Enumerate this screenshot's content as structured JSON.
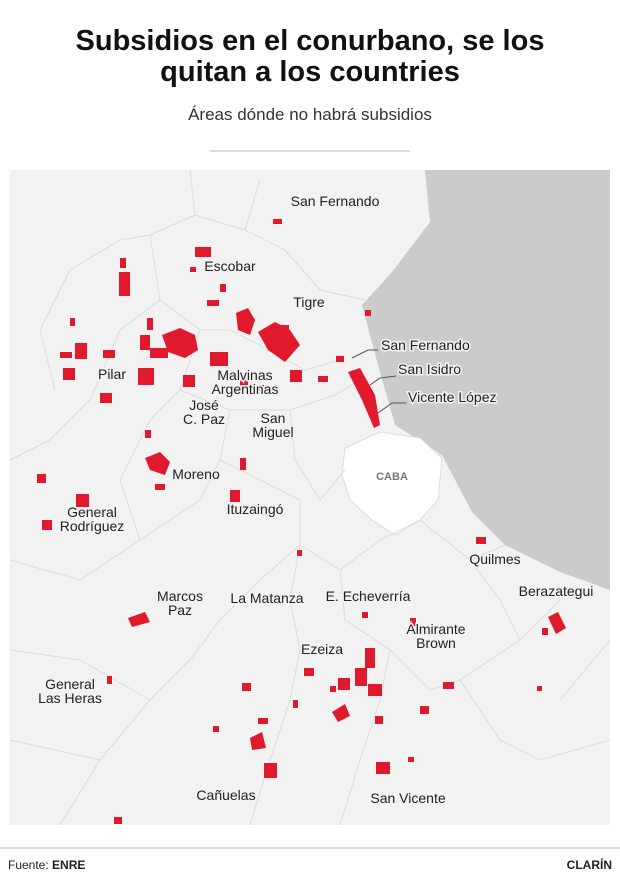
{
  "header": {
    "title": [
      "Subsidios en el conurbano, se los",
      "quitan a los countries"
    ],
    "subtitle": "Áreas dónde no habrá subsidios"
  },
  "map": {
    "labels": [
      {
        "lines": [
          "San Fernando"
        ]
      },
      {
        "lines": [
          "Escobar"
        ]
      },
      {
        "lines": [
          "Tigre"
        ]
      },
      {
        "lines": [
          "San Fernando"
        ]
      },
      {
        "lines": [
          "San Isidro"
        ]
      },
      {
        "lines": [
          "Vicente López"
        ]
      },
      {
        "lines": [
          "Pilar"
        ]
      },
      {
        "lines": [
          "Malvinas",
          "Argentinas"
        ]
      },
      {
        "lines": [
          "José",
          "C. Paz"
        ]
      },
      {
        "lines": [
          "San",
          "Miguel"
        ]
      },
      {
        "lines": [
          "CABA"
        ]
      },
      {
        "lines": [
          "Moreno"
        ]
      },
      {
        "lines": [
          "General",
          "Rodríguez"
        ]
      },
      {
        "lines": [
          "Ituzaingó"
        ]
      },
      {
        "lines": [
          "Quilmes"
        ]
      },
      {
        "lines": [
          "Berazategui"
        ]
      },
      {
        "lines": [
          "Marcos",
          "Paz"
        ]
      },
      {
        "lines": [
          "La Matanza"
        ]
      },
      {
        "lines": [
          "E. Echeverría"
        ]
      },
      {
        "lines": [
          "Almirante",
          "Brown"
        ]
      },
      {
        "lines": [
          "Ezeiza"
        ]
      },
      {
        "lines": [
          "General",
          "Las Heras"
        ]
      },
      {
        "lines": [
          "Cañuelas"
        ]
      },
      {
        "lines": [
          "San Vicente"
        ]
      }
    ]
  },
  "footer": {
    "source_label": "Fuente:",
    "source": "ENRE",
    "brand": "CLARÍN"
  }
}
